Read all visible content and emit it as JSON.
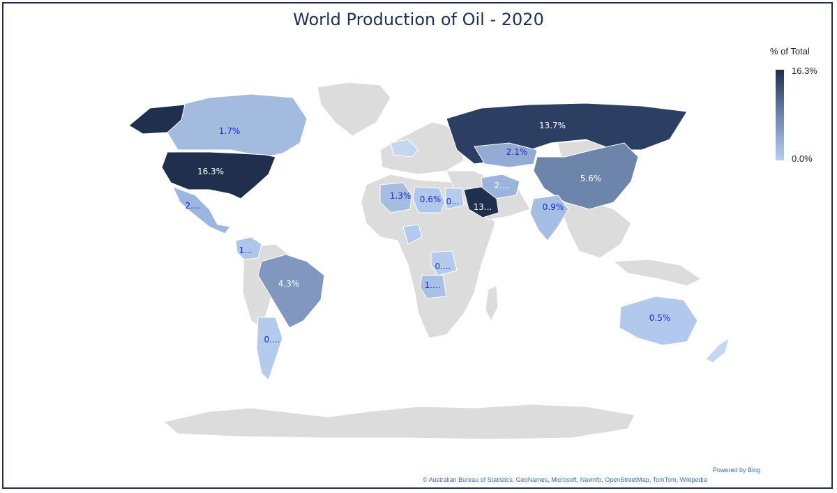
{
  "title": "World Production of Oil - 2020",
  "legend": {
    "title": "% of Total",
    "max_label": "16.3%",
    "min_label": "0.0%"
  },
  "footer": {
    "powered": "Powered by Bing",
    "attribution": "© Australian Bureau of Statistics, GeoNames, Microsoft, Navinfo, OpenStreetMap, TomTom, Wikipedia"
  },
  "colors": {
    "max": "#1f2f4d",
    "min": "#b8cff0",
    "no_data": "#dcdcdc",
    "label_dark": "#1a2ad8",
    "label_light": "#ffffff"
  },
  "regions": [
    {
      "name": "United States",
      "label": "16.3%",
      "value": 16.3
    },
    {
      "name": "Russia",
      "label": "13.7%",
      "value": 13.7
    },
    {
      "name": "Saudi Arabia",
      "label": "13...",
      "value": 13.0
    },
    {
      "name": "China",
      "label": "5.6%",
      "value": 5.6
    },
    {
      "name": "Brazil",
      "label": "4.3%",
      "value": 4.3
    },
    {
      "name": "Kazakhstan",
      "label": "2.1%",
      "value": 2.1
    },
    {
      "name": "Iran",
      "label": "2....",
      "value": 2.0
    },
    {
      "name": "Mexico",
      "label": "2....",
      "value": 2.0
    },
    {
      "name": "Canada",
      "label": "1.7%",
      "value": 1.7
    },
    {
      "name": "Algeria",
      "label": "1.3%",
      "value": 1.3
    },
    {
      "name": "Colombia",
      "label": "1...",
      "value": 1.0
    },
    {
      "name": "Angola",
      "label": "1....",
      "value": 1.0
    },
    {
      "name": "India",
      "label": "0.9%",
      "value": 0.9
    },
    {
      "name": "Libya",
      "label": "0.6%",
      "value": 0.6
    },
    {
      "name": "Australia",
      "label": "0.5%",
      "value": 0.5
    },
    {
      "name": "Egypt",
      "label": "0...",
      "value": 0.4
    },
    {
      "name": "Congo",
      "label": "0....",
      "value": 0.3
    },
    {
      "name": "Argentina",
      "label": "0....",
      "value": 0.3
    }
  ]
}
